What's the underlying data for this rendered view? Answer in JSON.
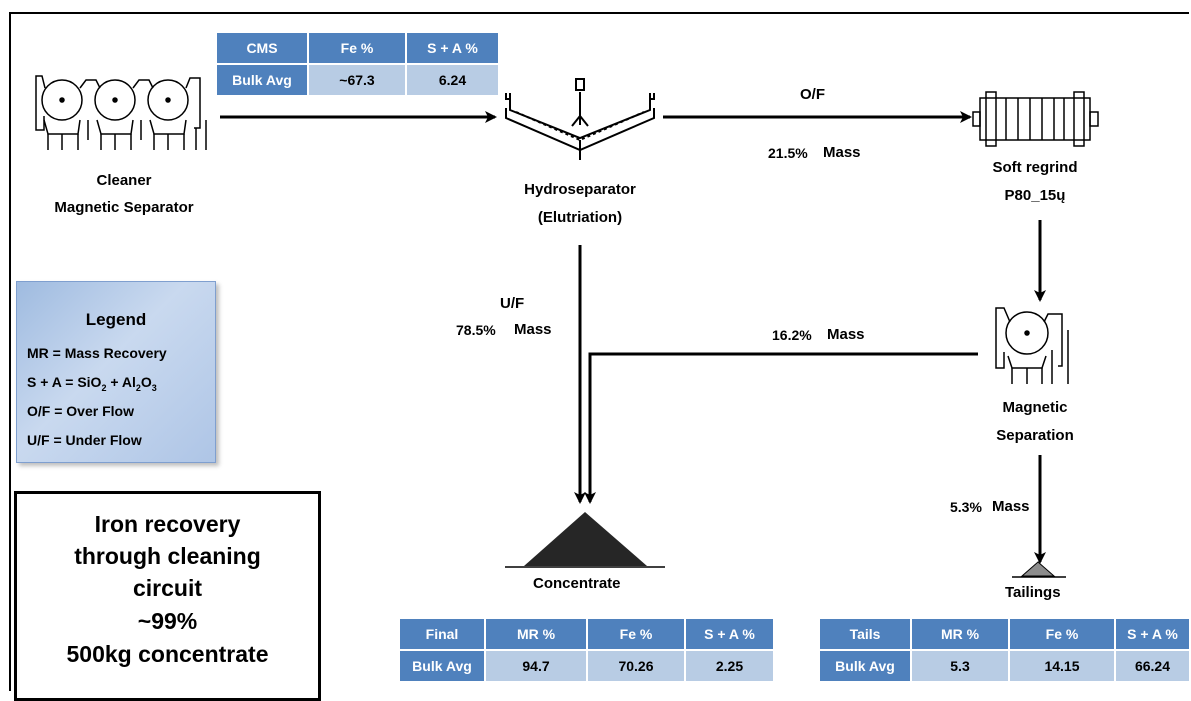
{
  "cms_table": {
    "headers": [
      "CMS",
      "Fe %",
      "S + A %"
    ],
    "row": [
      "Bulk Avg",
      "~67.3",
      "6.24"
    ]
  },
  "nodes": {
    "cleaner_line1": "Cleaner",
    "cleaner_line2": "Magnetic  Separator",
    "hydro_line1": "Hydroseparator",
    "hydro_line2": "(Elutriation)",
    "regrind_line1": "Soft regrind",
    "regrind_line2": "P80_15ų",
    "magsep_line1": "Magnetic",
    "magsep_line2": "Separation",
    "concentrate": "Concentrate",
    "tailings": "Tailings"
  },
  "flows": {
    "of_label": "O/F",
    "of_mass_pct": "21.5%",
    "of_mass_word": "Mass",
    "uf_label": "U/F",
    "uf_mass_pct": "78.5%",
    "uf_mass_word": "Mass",
    "mag_mass_pct": "16.2%",
    "mag_mass_word": "Mass",
    "tail_mass_pct": "5.3%",
    "tail_mass_word": "Mass"
  },
  "legend": {
    "title": "Legend",
    "mr": "MR = Mass Recovery",
    "sa_prefix": "S + A = SiO",
    "sa_sub1": "2",
    "sa_mid": " + Al",
    "sa_sub2": "2",
    "sa_o": "O",
    "sa_sub3": "3",
    "of": "O/F = Over Flow",
    "uf": "U/F = Under Flow"
  },
  "recovery_box": {
    "line1": "Iron recovery",
    "line2": "through cleaning",
    "line3": "circuit",
    "line4": "~99%",
    "line5": "500kg concentrate"
  },
  "final_table": {
    "headers": [
      "Final",
      "MR %",
      "Fe %",
      "S + A %"
    ],
    "row": [
      "Bulk Avg",
      "94.7",
      "70.26",
      "2.25"
    ]
  },
  "tails_table": {
    "headers": [
      "Tails",
      "MR %",
      "Fe %",
      "S + A %"
    ],
    "row": [
      "Bulk Avg",
      "5.3",
      "14.15",
      "66.24"
    ]
  },
  "colors": {
    "header_blue": "#4f81bd",
    "cell_light_blue": "#b8cce4",
    "concentrate_pile": "#262626",
    "tailings_pile": "#8c8c8c"
  }
}
